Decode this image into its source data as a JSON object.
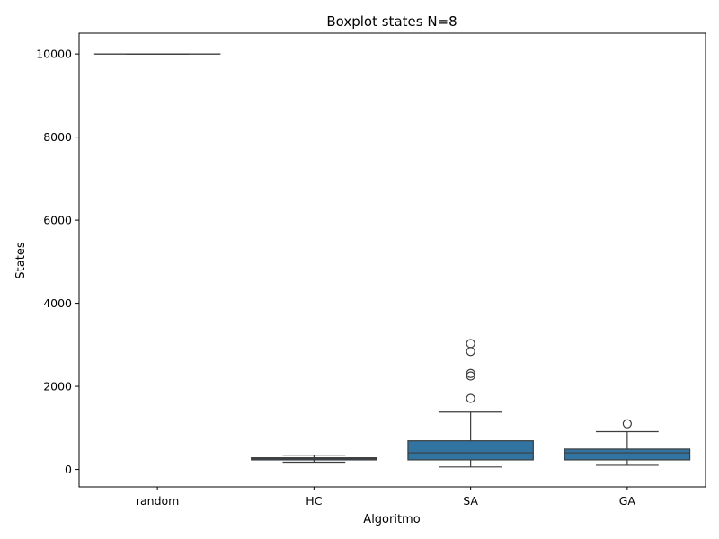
{
  "chart_data": {
    "type": "boxplot",
    "title": "Boxplot states N=8",
    "xlabel": "Algoritmo",
    "ylabel": "States",
    "categories": [
      "random",
      "HC",
      "SA",
      "GA"
    ],
    "ylim": [
      -420,
      10500
    ],
    "yticks": [
      0,
      2000,
      4000,
      6000,
      8000,
      10000
    ],
    "yticklabels": [
      "0",
      "2000",
      "4000",
      "6000",
      "8000",
      "10000"
    ],
    "grid": false,
    "legend": "none",
    "box_color": "#3274a1",
    "line_color": "#3d3d3d",
    "boxes": [
      {
        "category": "random",
        "whisker_low": 10000,
        "q1": 10000,
        "median": 10000,
        "q3": 10000,
        "whisker_high": 10000,
        "outliers": []
      },
      {
        "category": "HC",
        "whisker_low": 175,
        "q1": 230,
        "median": 255,
        "q3": 280,
        "whisker_high": 345,
        "outliers": []
      },
      {
        "category": "SA",
        "whisker_low": 60,
        "q1": 230,
        "median": 400,
        "q3": 690,
        "whisker_high": 1380,
        "outliers": [
          1710,
          2250,
          2310,
          2840,
          3030
        ]
      },
      {
        "category": "GA",
        "whisker_low": 100,
        "q1": 230,
        "median": 400,
        "q3": 490,
        "whisker_high": 910,
        "outliers": [
          1100
        ]
      }
    ]
  }
}
